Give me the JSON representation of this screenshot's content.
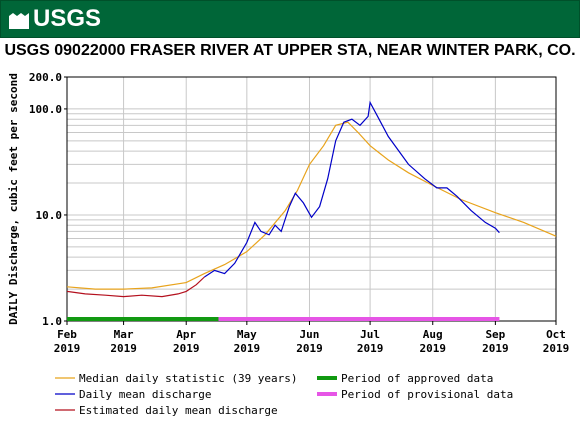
{
  "header": {
    "logo_text": "USGS"
  },
  "chart_data": {
    "type": "line",
    "title": "USGS 09022000 FRASER RIVER AT UPPER STA, NEAR WINTER PARK, CO.",
    "ylabel": "DAILY Discharge, cubic feet per second",
    "xlabel": "",
    "yscale": "log",
    "ylim": [
      1.0,
      200.0
    ],
    "y_ticks": [
      "1.0",
      "10.0",
      "100.0",
      "200.0"
    ],
    "x_ticks": [
      {
        "month": "Feb",
        "year": "2019",
        "date": "2019-02-01"
      },
      {
        "month": "Mar",
        "year": "2019",
        "date": "2019-03-01"
      },
      {
        "month": "Apr",
        "year": "2019",
        "date": "2019-04-01"
      },
      {
        "month": "May",
        "year": "2019",
        "date": "2019-05-01"
      },
      {
        "month": "Jun",
        "year": "2019",
        "date": "2019-06-01"
      },
      {
        "month": "Jul",
        "year": "2019",
        "date": "2019-07-01"
      },
      {
        "month": "Aug",
        "year": "2019",
        "date": "2019-08-01"
      },
      {
        "month": "Sep",
        "year": "2019",
        "date": "2019-09-01"
      },
      {
        "month": "Oct",
        "year": "2019",
        "date": "2019-10-01"
      }
    ],
    "grid": true,
    "legend_position": "bottom",
    "series": [
      {
        "name": "Median daily statistic (39 years)",
        "color": "#e8a31c",
        "points": [
          [
            "2019-02-01",
            2.1
          ],
          [
            "2019-02-15",
            2.0
          ],
          [
            "2019-03-01",
            2.0
          ],
          [
            "2019-03-15",
            2.05
          ],
          [
            "2019-04-01",
            2.3
          ],
          [
            "2019-04-10",
            2.8
          ],
          [
            "2019-04-20",
            3.4
          ],
          [
            "2019-05-01",
            4.5
          ],
          [
            "2019-05-10",
            6.5
          ],
          [
            "2019-05-20",
            11.0
          ],
          [
            "2019-05-26",
            17.0
          ],
          [
            "2019-06-01",
            30.0
          ],
          [
            "2019-06-08",
            45.0
          ],
          [
            "2019-06-14",
            70.0
          ],
          [
            "2019-06-20",
            75.0
          ],
          [
            "2019-06-25",
            60.0
          ],
          [
            "2019-07-01",
            45.0
          ],
          [
            "2019-07-10",
            33.0
          ],
          [
            "2019-07-20",
            25.0
          ],
          [
            "2019-08-01",
            19.0
          ],
          [
            "2019-08-15",
            14.0
          ],
          [
            "2019-09-01",
            10.5
          ],
          [
            "2019-09-15",
            8.5
          ],
          [
            "2019-10-01",
            6.3
          ]
        ]
      },
      {
        "name": "Daily mean discharge",
        "color": "#0000c8",
        "points": [
          [
            "2019-04-10",
            2.6
          ],
          [
            "2019-04-15",
            3.0
          ],
          [
            "2019-04-20",
            2.8
          ],
          [
            "2019-04-25",
            3.5
          ],
          [
            "2019-05-01",
            5.5
          ],
          [
            "2019-05-05",
            8.5
          ],
          [
            "2019-05-08",
            7.0
          ],
          [
            "2019-05-12",
            6.5
          ],
          [
            "2019-05-15",
            8.0
          ],
          [
            "2019-05-18",
            7.0
          ],
          [
            "2019-05-22",
            12.0
          ],
          [
            "2019-05-25",
            16.0
          ],
          [
            "2019-05-29",
            13.0
          ],
          [
            "2019-06-02",
            9.5
          ],
          [
            "2019-06-06",
            12.0
          ],
          [
            "2019-06-10",
            22.0
          ],
          [
            "2019-06-14",
            50.0
          ],
          [
            "2019-06-18",
            75.0
          ],
          [
            "2019-06-22",
            80.0
          ],
          [
            "2019-06-26",
            70.0
          ],
          [
            "2019-06-30",
            85.0
          ],
          [
            "2019-07-01",
            115.0
          ],
          [
            "2019-07-04",
            90.0
          ],
          [
            "2019-07-10",
            55.0
          ],
          [
            "2019-07-20",
            30.0
          ],
          [
            "2019-07-28",
            22.0
          ],
          [
            "2019-08-03",
            18.0
          ],
          [
            "2019-08-08",
            18.0
          ],
          [
            "2019-08-13",
            15.0
          ],
          [
            "2019-08-20",
            11.0
          ],
          [
            "2019-08-27",
            8.5
          ],
          [
            "2019-09-01",
            7.5
          ],
          [
            "2019-09-03",
            6.8
          ]
        ]
      },
      {
        "name": "Estimated daily mean discharge",
        "color": "#b4101e",
        "points": [
          [
            "2019-02-01",
            1.9
          ],
          [
            "2019-02-10",
            1.8
          ],
          [
            "2019-02-20",
            1.75
          ],
          [
            "2019-03-01",
            1.7
          ],
          [
            "2019-03-10",
            1.75
          ],
          [
            "2019-03-20",
            1.7
          ],
          [
            "2019-03-28",
            1.8
          ],
          [
            "2019-04-01",
            1.9
          ],
          [
            "2019-04-06",
            2.2
          ],
          [
            "2019-04-10",
            2.6
          ]
        ]
      }
    ],
    "periods": [
      {
        "name": "Period of approved data",
        "color": "#119911",
        "start": "2019-02-01",
        "end": "2019-04-17"
      },
      {
        "name": "Period of provisional data",
        "color": "#e655e6",
        "start": "2019-04-17",
        "end": "2019-09-03"
      }
    ]
  }
}
